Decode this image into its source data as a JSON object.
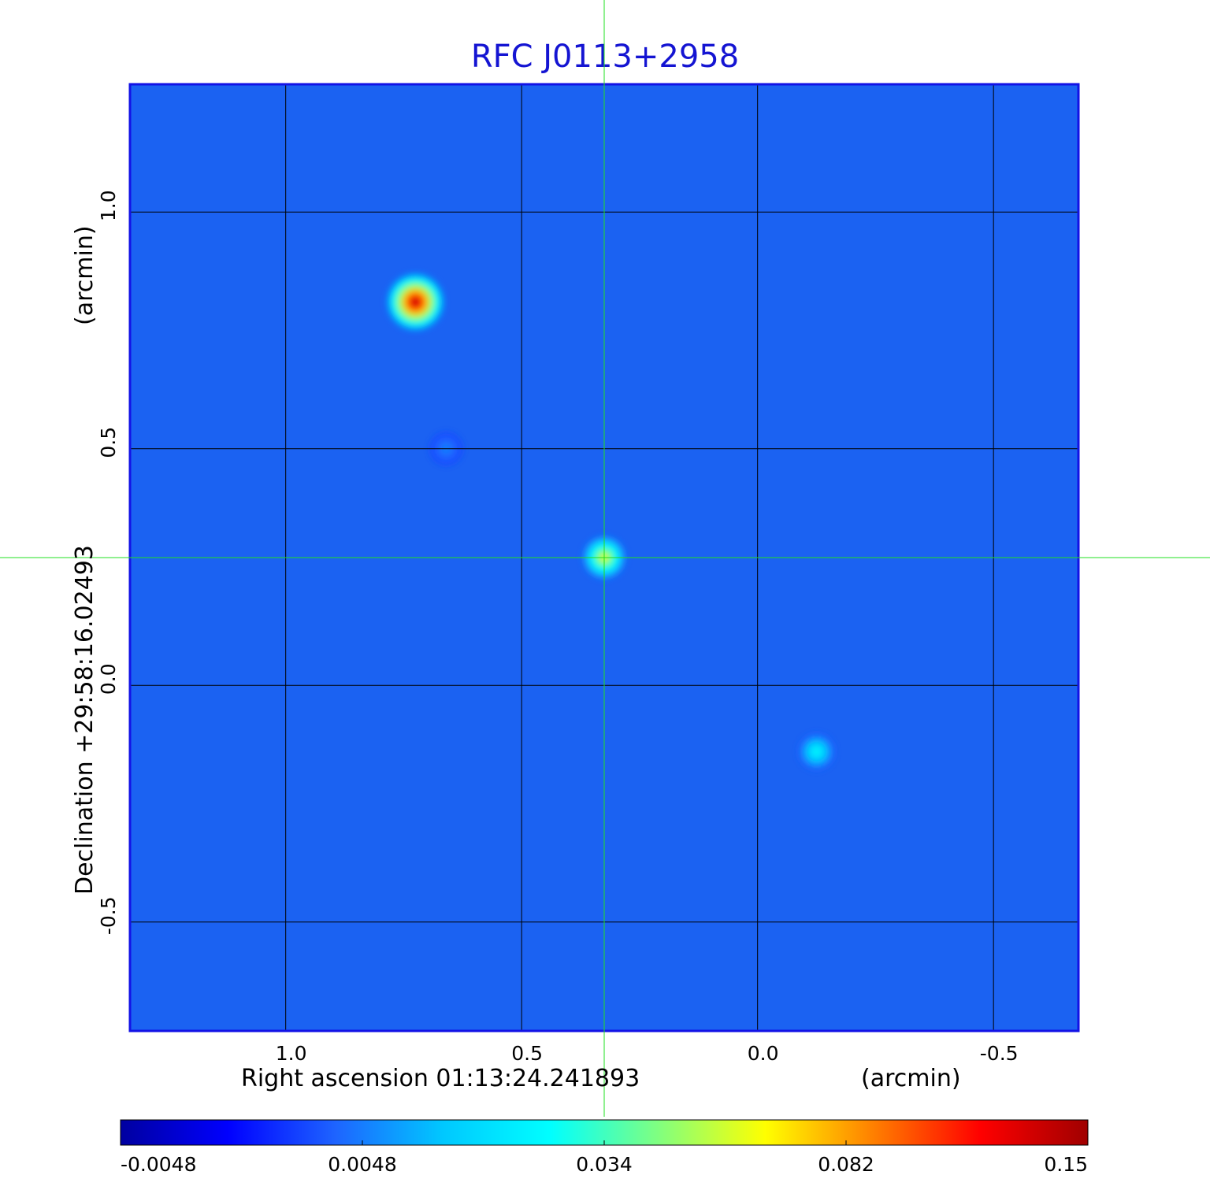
{
  "chart_data": {
    "type": "heatmap",
    "title": "RFC J0113+2958",
    "xlabel": "Right ascension  01:13:24.241893",
    "xunit": "(arcmin)",
    "ylabel": "Declination  +29:58:16.02493",
    "yunit": "(arcmin)",
    "xlim": [
      1.33,
      -0.68
    ],
    "ylim": [
      -0.73,
      1.27
    ],
    "x_ticks": [
      {
        "value": 1.0,
        "label": "1.0"
      },
      {
        "value": 0.5,
        "label": "0.5"
      },
      {
        "value": 0.0,
        "label": "0.0"
      },
      {
        "value": -0.5,
        "label": "-0.5"
      }
    ],
    "y_ticks": [
      {
        "value": 1.0,
        "label": "1.0"
      },
      {
        "value": 0.5,
        "label": "0.5"
      },
      {
        "value": 0.0,
        "label": "0.0"
      },
      {
        "value": -0.5,
        "label": "-0.5"
      }
    ],
    "grid": true,
    "crosshair": {
      "x": 0.325,
      "y": 0.27,
      "color": "#22e022"
    },
    "sources": [
      {
        "x": 0.725,
        "y": 0.81,
        "peak": 0.15
      },
      {
        "x": 0.325,
        "y": 0.27,
        "peak": 0.068
      },
      {
        "x": -0.125,
        "y": -0.14,
        "peak": 0.028
      },
      {
        "x": 0.66,
        "y": 0.5,
        "peak": 0.006
      }
    ],
    "colorbar": {
      "ticks": [
        {
          "value": -0.0048,
          "label": "-0.0048"
        },
        {
          "value": 0.0048,
          "label": "0.0048"
        },
        {
          "value": 0.034,
          "label": "0.034"
        },
        {
          "value": 0.082,
          "label": "0.082"
        },
        {
          "value": 0.15,
          "label": "0.15"
        }
      ],
      "colors": [
        "#0000a0",
        "#0000ff",
        "#1e64ff",
        "#00c8ff",
        "#00ffff",
        "#80ff80",
        "#ffff00",
        "#ff8000",
        "#ff0000",
        "#a00000"
      ]
    },
    "colors": {
      "background": "#1b62f2",
      "frame": "#1212e6",
      "grid": "#000000",
      "title": "#1414d2"
    }
  }
}
